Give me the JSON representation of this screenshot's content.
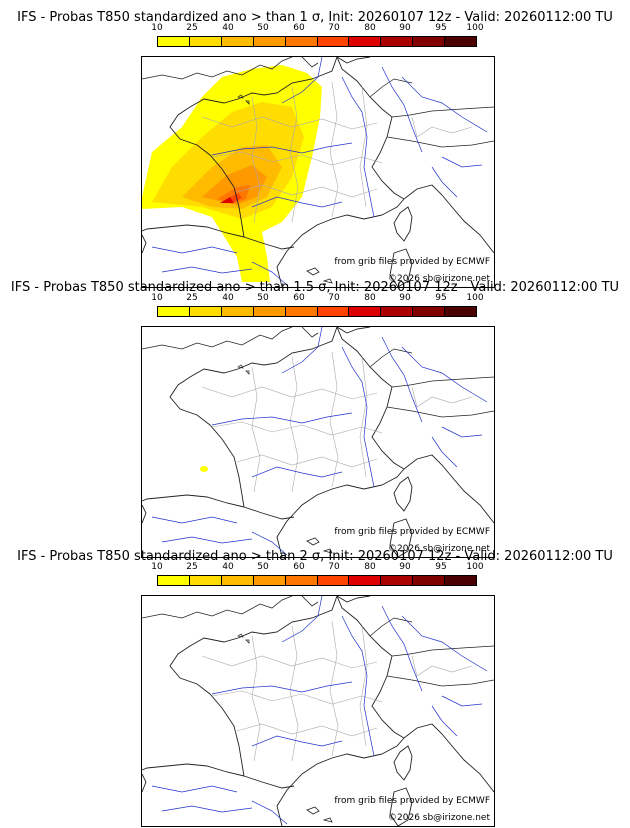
{
  "colorbar": {
    "ticks": [
      "10",
      "25",
      "40",
      "50",
      "60",
      "70",
      "80",
      "90",
      "95",
      "100"
    ],
    "colors": [
      "#ffff00",
      "#ffdd00",
      "#ffbb00",
      "#ff9900",
      "#ff7700",
      "#ff4400",
      "#dd0000",
      "#aa0000",
      "#800000",
      "#4a0000"
    ]
  },
  "panels": [
    {
      "title": "IFS - Probas T850  standardized ano > than 1 σ, Init: 20260107 12z - Valid: 20260112:00 TU",
      "source": "from grib files provided by ECMWF",
      "copyright": "©2026 sb@irizone.net",
      "prob_field": "strong"
    },
    {
      "title": "IFS - Probas T850  standardized ano > than 1.5 σ, Init: 20260107 12z - Valid: 20260112:00 TU",
      "source": "from grib files provided by ECMWF",
      "copyright": "©2026 sb@irizone.net",
      "prob_field": "trace"
    },
    {
      "title": "IFS - Probas T850  standardized ano > than 2 σ, Init: 20260107 12z - Valid: 20260112:00 TU",
      "source": "from grib files provided by ECMWF",
      "copyright": "©2026 sb@irizone.net",
      "prob_field": "none"
    }
  ]
}
